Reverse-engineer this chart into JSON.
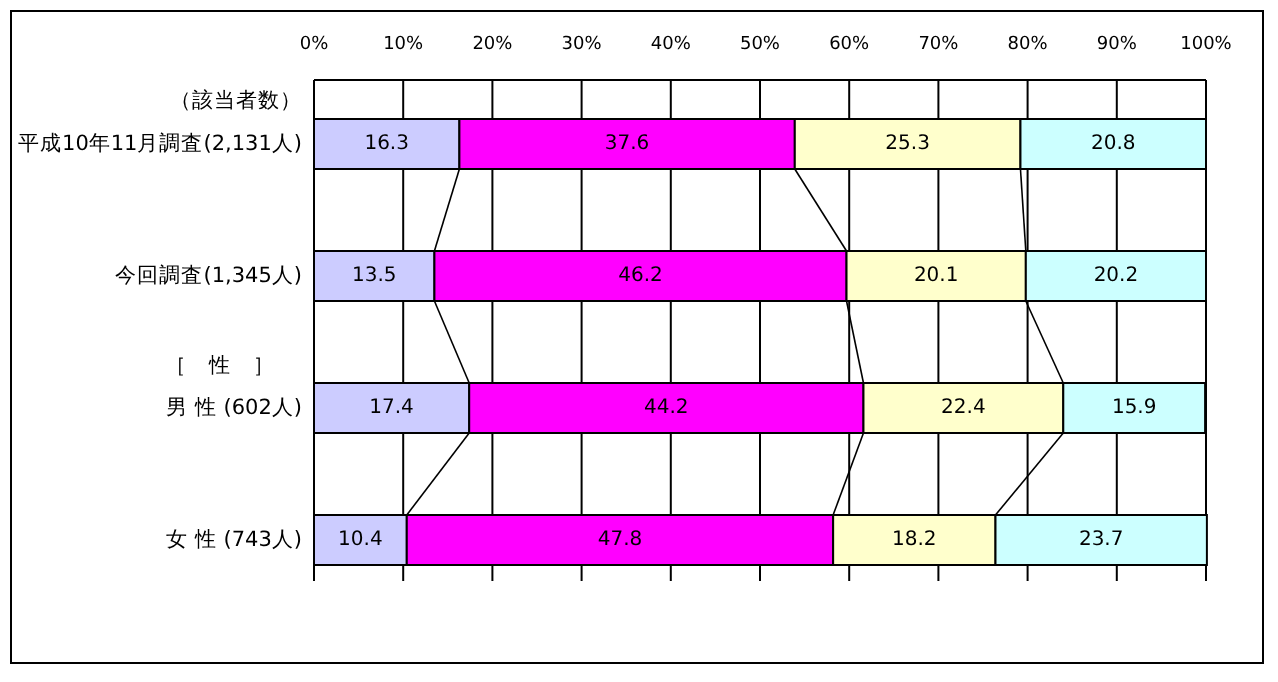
{
  "chart_data": {
    "type": "bar",
    "orientation": "horizontal",
    "stacked": true,
    "data_labels": true,
    "grid": "x",
    "categories": [
      "平成10年11月調査(2,131人)",
      "今回調査(1,345人)",
      "男 性 (602人)",
      "女 性 (743人)"
    ],
    "annotations": [
      "（該当者数）",
      "［　性　］"
    ],
    "xlim": [
      0,
      100
    ],
    "xticks": [
      {
        "value": 0,
        "label": "0%"
      },
      {
        "value": 10,
        "label": "10%"
      },
      {
        "value": 20,
        "label": "20%"
      },
      {
        "value": 30,
        "label": "30%"
      },
      {
        "value": 40,
        "label": "40%"
      },
      {
        "value": 50,
        "label": "50%"
      },
      {
        "value": 60,
        "label": "60%"
      },
      {
        "value": 70,
        "label": "70%"
      },
      {
        "value": 80,
        "label": "80%"
      },
      {
        "value": 90,
        "label": "90%"
      },
      {
        "value": 100,
        "label": "100%"
      }
    ],
    "series": [
      {
        "color": "#ccccff",
        "values": [
          16.3,
          13.5,
          17.4,
          10.4
        ]
      },
      {
        "color": "#ff00ff",
        "values": [
          37.6,
          46.2,
          44.2,
          47.8
        ]
      },
      {
        "color": "#ffffcc",
        "values": [
          25.3,
          20.1,
          22.4,
          18.2
        ]
      },
      {
        "color": "#ccffff",
        "values": [
          20.8,
          20.2,
          15.9,
          23.7
        ]
      }
    ]
  }
}
